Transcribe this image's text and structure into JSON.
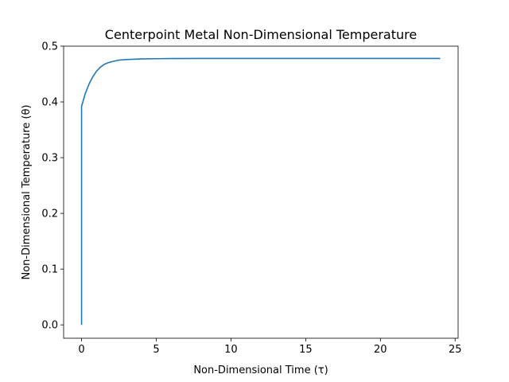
{
  "chart_data": {
    "type": "line",
    "title": "Centerpoint Metal Non-Dimensional Temperature",
    "xlabel": "Non-Dimensional Time (τ)",
    "ylabel": "Non-Dimensional Temperature (θ)",
    "xlim": [
      -1.2,
      25.2
    ],
    "ylim": [
      -0.024,
      0.5
    ],
    "xticks": [
      0,
      5,
      10,
      15,
      20,
      25
    ],
    "xtick_labels": [
      "0",
      "5",
      "10",
      "15",
      "20",
      "25"
    ],
    "yticks": [
      0.0,
      0.1,
      0.2,
      0.3,
      0.4,
      0.5
    ],
    "ytick_labels": [
      "0.0",
      "0.1",
      "0.2",
      "0.3",
      "0.4",
      "0.5"
    ],
    "grid": false,
    "series": [
      {
        "color": "#1f77b4",
        "x": [
          0,
          0,
          0.25,
          0.5,
          0.75,
          1.0,
          1.25,
          1.5,
          1.75,
          2.0,
          2.5,
          3.0,
          3.5,
          4.0,
          5.0,
          6.0,
          8.0,
          10.0,
          12.0,
          16.0,
          20.0,
          24.0
        ],
        "y": [
          0.0,
          0.392,
          0.415,
          0.432,
          0.445,
          0.455,
          0.462,
          0.467,
          0.47,
          0.472,
          0.475,
          0.476,
          0.4765,
          0.477,
          0.4775,
          0.4778,
          0.478,
          0.478,
          0.478,
          0.478,
          0.478,
          0.478
        ]
      }
    ]
  }
}
